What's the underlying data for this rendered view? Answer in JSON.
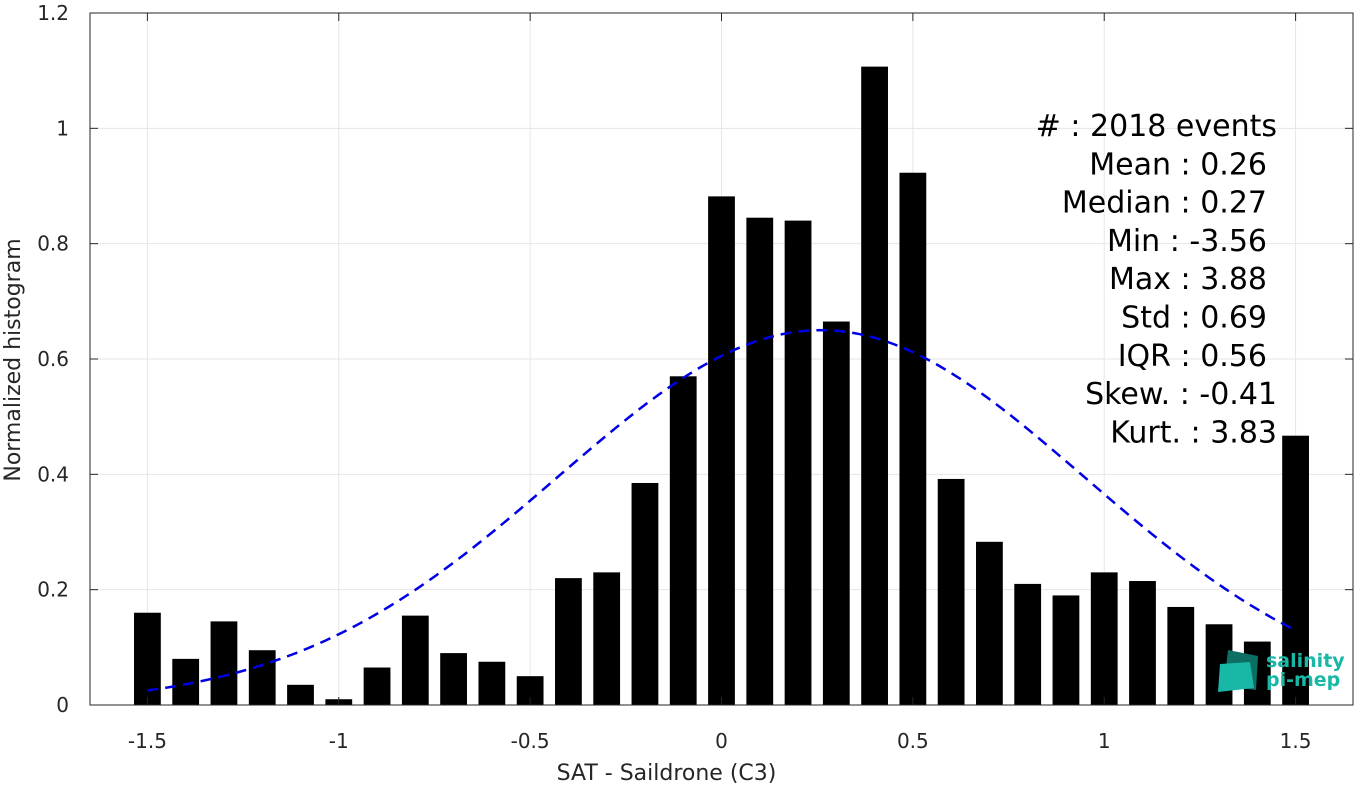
{
  "chart_data": {
    "type": "bar",
    "xlabel": "SAT - Saildrone (C3)",
    "ylabel": "Normalized histogram",
    "xlim": [
      -1.65,
      1.65
    ],
    "ylim": [
      0,
      1.2
    ],
    "xticks": [
      -1.5,
      -1,
      -0.5,
      0,
      0.5,
      1,
      1.5
    ],
    "xtick_labels": [
      "-1.5",
      "-1",
      "-0.5",
      "0",
      "0.5",
      "1",
      "1.5"
    ],
    "yticks": [
      0,
      0.2,
      0.4,
      0.6,
      0.8,
      1,
      1.2
    ],
    "ytick_labels": [
      "0",
      "0.2",
      "0.4",
      "0.6",
      "0.8",
      "1",
      "1.2"
    ],
    "grid": true,
    "bar_width": 0.07,
    "bar_color": "#000000",
    "x": [
      -1.5,
      -1.4,
      -1.3,
      -1.2,
      -1.1,
      -1.0,
      -0.9,
      -0.8,
      -0.7,
      -0.6,
      -0.5,
      -0.4,
      -0.3,
      -0.2,
      -0.1,
      0.0,
      0.1,
      0.2,
      0.3,
      0.4,
      0.5,
      0.6,
      0.7,
      0.8,
      0.9,
      1.0,
      1.1,
      1.2,
      1.3,
      1.4,
      1.5
    ],
    "values": [
      0.16,
      0.08,
      0.145,
      0.095,
      0.035,
      0.01,
      0.065,
      0.155,
      0.09,
      0.075,
      0.05,
      0.22,
      0.23,
      0.385,
      0.57,
      0.882,
      0.845,
      0.84,
      0.665,
      1.107,
      0.923,
      0.392,
      0.283,
      0.21,
      0.19,
      0.23,
      0.215,
      0.17,
      0.14,
      0.11,
      0.467
    ],
    "fit_curve": {
      "style": "dashed",
      "color": "#0000e6",
      "mean": 0.26,
      "std": 0.69,
      "amplitude": 0.65
    },
    "stats": [
      "#  : 2018 events",
      "Mean : 0.26",
      "Median : 0.27",
      "Min : -3.56",
      "Max : 3.88",
      "Std : 0.69",
      "IQR : 0.56",
      "Skew. : -0.41",
      "Kurt. : 3.83"
    ]
  },
  "logo": {
    "line1": "salinity",
    "line2": "pi-mep",
    "color": "#18b7a6",
    "dark_color": "#0d6e63"
  }
}
